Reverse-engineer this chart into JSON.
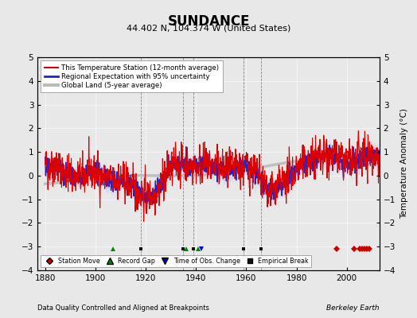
{
  "title": "SUNDANCE",
  "subtitle": "44.402 N, 104.374 W (United States)",
  "ylabel": "Temperature Anomaly (°C)",
  "xlabel_bottom": "Data Quality Controlled and Aligned at Breakpoints",
  "xlabel_right": "Berkeley Earth",
  "ylim": [
    -4,
    5
  ],
  "xlim": [
    1877,
    2013
  ],
  "year_start": 1880,
  "year_end": 2012,
  "bg_color": "#e8e8e8",
  "red_line_color": "#dd0000",
  "blue_line_color": "#2222cc",
  "blue_fill_color": "#aaaaee",
  "gray_line_color": "#bbbbbb",
  "legend_entries": [
    {
      "label": "This Temperature Station (12-month average)",
      "color": "#dd0000",
      "lw": 0.8
    },
    {
      "label": "Regional Expectation with 95% uncertainty",
      "color": "#2222cc",
      "lw": 1.0
    },
    {
      "label": "Global Land (5-year average)",
      "color": "#bbbbbb",
      "lw": 2.5
    }
  ],
  "marker_legend": [
    {
      "label": "Station Move",
      "color": "#cc0000",
      "marker": "D"
    },
    {
      "label": "Record Gap",
      "color": "#008800",
      "marker": "^"
    },
    {
      "label": "Time of Obs. Change",
      "color": "#0000cc",
      "marker": "v"
    },
    {
      "label": "Empirical Break",
      "color": "#111111",
      "marker": "s"
    }
  ],
  "station_moves": [
    1996,
    2003,
    2005,
    2006,
    2007,
    2008,
    2009
  ],
  "record_gaps": [
    1907,
    1936,
    1941
  ],
  "obs_changes": [
    1942
  ],
  "emp_breaks": [
    1918,
    1935,
    1939,
    1959,
    1966
  ],
  "vert_lines": [
    1918,
    1935,
    1939,
    1959,
    1966
  ],
  "tick_years": [
    1880,
    1900,
    1920,
    1940,
    1960,
    1980,
    2000
  ],
  "yticks": [
    -4,
    -3,
    -2,
    -1,
    0,
    1,
    2,
    3,
    4,
    5
  ]
}
